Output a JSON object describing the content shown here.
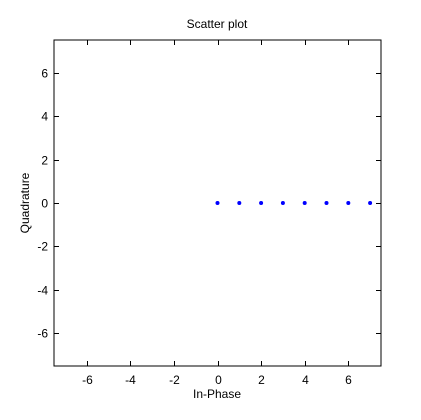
{
  "chart_data": {
    "type": "scatter",
    "title": "Scatter plot",
    "xlabel": "In-Phase",
    "ylabel": "Quadrature",
    "xlim": [
      -7.5,
      7.5
    ],
    "ylim": [
      -7.5,
      7.5
    ],
    "xticks": [
      -6,
      -4,
      -2,
      0,
      2,
      4,
      6
    ],
    "yticks": [
      -6,
      -4,
      -2,
      0,
      2,
      4,
      6
    ],
    "xtick_labels": [
      "-6",
      "-4",
      "-2",
      "0",
      "2",
      "4",
      "6"
    ],
    "ytick_labels": [
      "-6",
      "-4",
      "-2",
      "0",
      "2",
      "4",
      "6"
    ],
    "grid": false,
    "series": [
      {
        "color": "#0000ff",
        "marker": "dot",
        "points": [
          {
            "x": 0,
            "y": 0
          },
          {
            "x": 1,
            "y": 0
          },
          {
            "x": 2,
            "y": 0
          },
          {
            "x": 3,
            "y": 0
          },
          {
            "x": 4,
            "y": 0
          },
          {
            "x": 5,
            "y": 0
          },
          {
            "x": 6,
            "y": 0
          },
          {
            "x": 7,
            "y": 0
          }
        ]
      }
    ]
  }
}
